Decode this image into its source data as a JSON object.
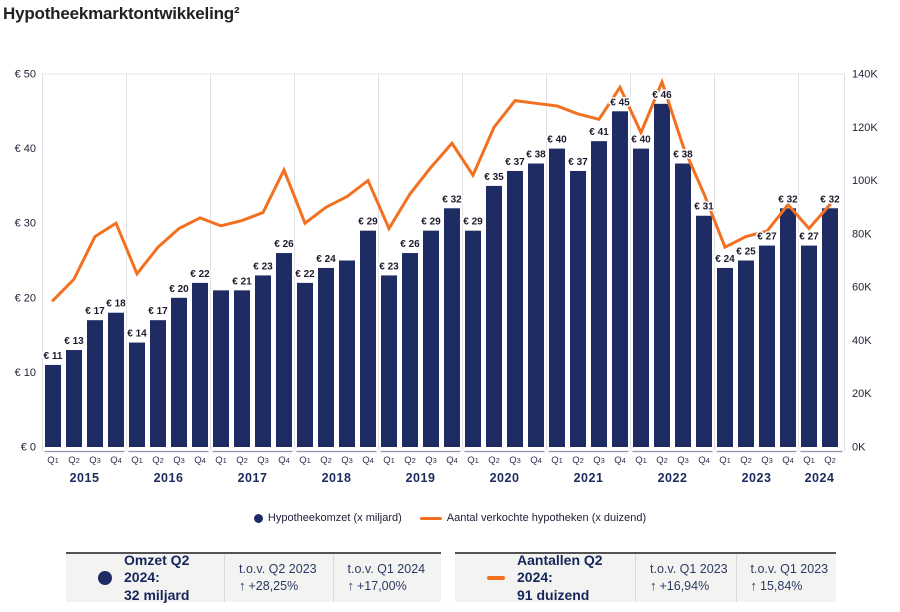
{
  "title": "Hypotheekmarktontwikkeling²",
  "legend": {
    "bar_label": "Hypotheekomzet (x miljard)",
    "line_label": "Aantal verkochte hypotheken (x duizend)"
  },
  "chart_data": {
    "type": "bar+line",
    "categories": [
      "Q1",
      "Q2",
      "Q3",
      "Q4",
      "Q1",
      "Q2",
      "Q3",
      "Q4",
      "Q1",
      "Q2",
      "Q3",
      "Q4",
      "Q1",
      "Q2",
      "Q3",
      "Q4",
      "Q1",
      "Q2",
      "Q3",
      "Q4",
      "Q1",
      "Q2",
      "Q3",
      "Q4",
      "Q1",
      "Q2",
      "Q3",
      "Q4",
      "Q1",
      "Q2",
      "Q3",
      "Q4",
      "Q1",
      "Q2",
      "Q3",
      "Q4",
      "Q1",
      "Q2"
    ],
    "year_groups": [
      {
        "label": "2015",
        "count": 4
      },
      {
        "label": "2016",
        "count": 4
      },
      {
        "label": "2017",
        "count": 4
      },
      {
        "label": "2018",
        "count": 4
      },
      {
        "label": "2019",
        "count": 4
      },
      {
        "label": "2020",
        "count": 4
      },
      {
        "label": "2021",
        "count": 4
      },
      {
        "label": "2022",
        "count": 4
      },
      {
        "label": "2023",
        "count": 4
      },
      {
        "label": "2024",
        "count": 2
      }
    ],
    "series": [
      {
        "name": "Hypotheekomzet (x miljard)",
        "type": "bar",
        "color": "#1f2c64",
        "axis": "left",
        "values": [
          11,
          13,
          17,
          18,
          14,
          17,
          20,
          22,
          21,
          21,
          23,
          26,
          22,
          24,
          25,
          29,
          23,
          26,
          29,
          32,
          29,
          35,
          37,
          38,
          40,
          37,
          41,
          45,
          40,
          46,
          38,
          31,
          24,
          25,
          27,
          32,
          27,
          32
        ],
        "labels": [
          "€ 11",
          "€ 13",
          "€ 17",
          "€ 18",
          "€ 14",
          "€ 17",
          "€ 20",
          "€ 22",
          null,
          "€ 21",
          "€ 23",
          "€ 26",
          "€ 22",
          "€ 24",
          null,
          "€ 29",
          "€ 23",
          "€ 26",
          "€ 29",
          "€ 32",
          "€ 29",
          "€ 35",
          "€ 37",
          "€ 38",
          "€ 40",
          "€ 37",
          "€ 41",
          "€ 45",
          "€ 40",
          "€ 46",
          "€ 38",
          "€ 31",
          "€ 24",
          "€ 25",
          "€ 27",
          "€ 32",
          "€ 27",
          "€ 32"
        ]
      },
      {
        "name": "Aantal verkochte hypotheken (x duizend)",
        "type": "line",
        "color": "#f37021",
        "axis": "right",
        "values": [
          55,
          63,
          79,
          84,
          65,
          75,
          82,
          86,
          83,
          85,
          88,
          104,
          84,
          90,
          94,
          100,
          82,
          95,
          105,
          114,
          102,
          120,
          130,
          129,
          128,
          125,
          123,
          135,
          118,
          137,
          113,
          95,
          75,
          79,
          81,
          91,
          82,
          91
        ]
      }
    ],
    "left_axis": {
      "min": 0,
      "max": 50,
      "step": 10,
      "labels": [
        "€ 0",
        "€ 10",
        "€ 20",
        "€ 30",
        "€ 40",
        "€ 50"
      ]
    },
    "right_axis": {
      "min": 0,
      "max": 140,
      "step": 20,
      "labels": [
        "0K",
        "20K",
        "40K",
        "60K",
        "80K",
        "100K",
        "120K",
        "140K"
      ]
    },
    "grid": "year-separators, top rule only"
  },
  "panels": [
    {
      "icon": "bar-series-dot",
      "title_line1": "Omzet Q2 2024:",
      "title_line2": "32 miljard",
      "stats": [
        {
          "ref": "t.o.v. Q2 2023",
          "arrow": "↑",
          "value": "+28,25%"
        },
        {
          "ref": "t.o.v. Q1 2024",
          "arrow": "↑",
          "value": "+17,00%"
        }
      ]
    },
    {
      "icon": "line-series-dash",
      "title_line1": "Aantallen Q2 2024:",
      "title_line2": "91 duizend",
      "stats": [
        {
          "ref": "t.o.v. Q1 2023",
          "arrow": "↑",
          "value": "+16,94%"
        },
        {
          "ref": "t.o.v. Q1 2023",
          "arrow": "↑",
          "value": "15,84%"
        }
      ]
    }
  ]
}
